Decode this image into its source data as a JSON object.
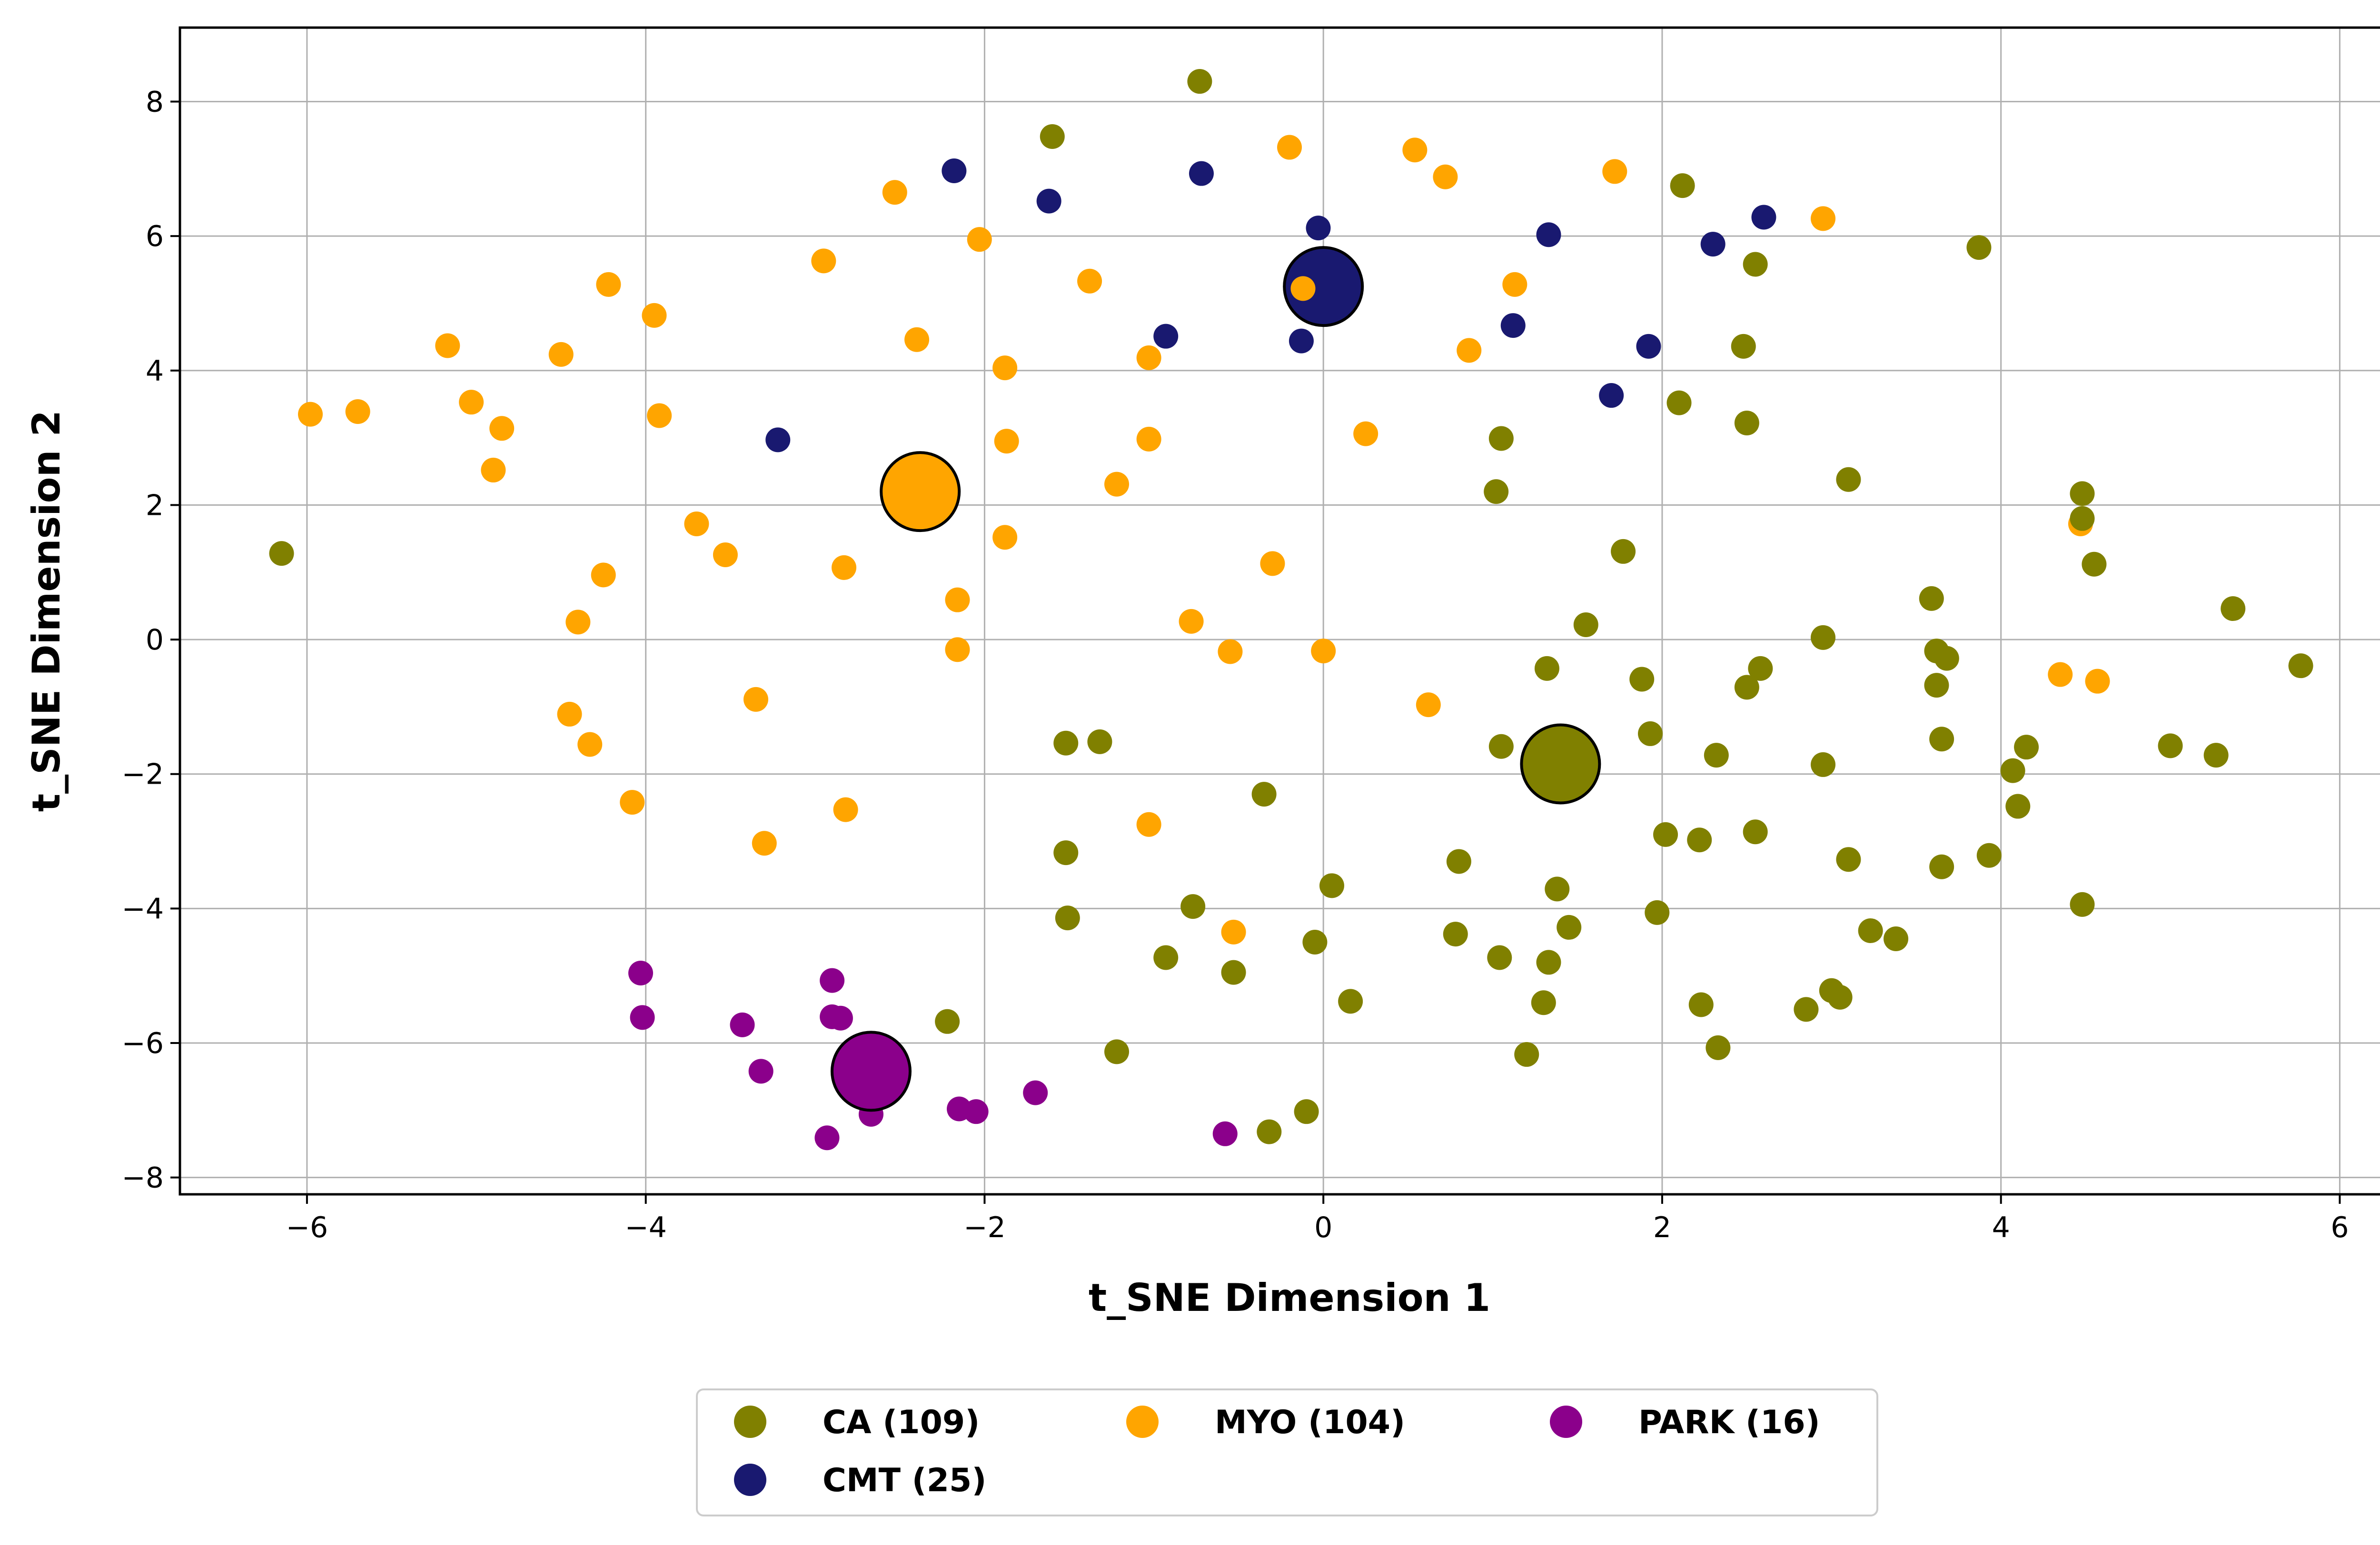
{
  "chart_data": {
    "type": "scatter",
    "title": "",
    "xlabel": "t_SNE Dimension 1",
    "ylabel": "t_SNE Dimension 2",
    "xlim": [
      -6.75,
      6.35
    ],
    "ylim": [
      -8.25,
      9.1
    ],
    "x_ticks": [
      "−6",
      "−4",
      "−2",
      "0",
      "2",
      "4",
      "6"
    ],
    "x_tick_values": [
      -6,
      -4,
      -2,
      0,
      2,
      4,
      6
    ],
    "y_ticks": [
      "−8",
      "−6",
      "−4",
      "−2",
      "0",
      "2",
      "4",
      "6",
      "8"
    ],
    "y_tick_values": [
      -8,
      -6,
      -4,
      -2,
      0,
      2,
      4,
      6,
      8
    ],
    "grid": true,
    "legend_position": "bottom-center",
    "legend": [
      {
        "label": "CA (109)",
        "color": "#808000"
      },
      {
        "label": "MYO (104)",
        "color": "#FFA500"
      },
      {
        "label": "PARK (16)",
        "color": "#8B008B"
      },
      {
        "label": "CMT (25)",
        "color": "#191970"
      }
    ],
    "series": [
      {
        "name": "CA (109)",
        "color": "#808000",
        "centroid": [
          1.4,
          -1.85
        ],
        "points": [
          [
            -6.15,
            1.28
          ],
          [
            -0.73,
            8.3
          ],
          [
            -1.6,
            7.48
          ],
          [
            2.12,
            6.75
          ],
          [
            3.87,
            5.83
          ],
          [
            2.55,
            5.58
          ],
          [
            2.48,
            4.36
          ],
          [
            2.1,
            3.52
          ],
          [
            2.5,
            3.22
          ],
          [
            1.05,
            2.99
          ],
          [
            1.02,
            2.2
          ],
          [
            3.1,
            2.38
          ],
          [
            4.48,
            2.17
          ],
          [
            4.48,
            1.8
          ],
          [
            4.55,
            1.12
          ],
          [
            1.77,
            1.31
          ],
          [
            1.55,
            0.22
          ],
          [
            3.59,
            0.61
          ],
          [
            3.62,
            -0.17
          ],
          [
            3.68,
            -0.28
          ],
          [
            3.62,
            -0.68
          ],
          [
            5.37,
            0.46
          ],
          [
            5.77,
            -0.39
          ],
          [
            2.95,
            0.03
          ],
          [
            1.32,
            -0.43
          ],
          [
            1.88,
            -0.59
          ],
          [
            2.5,
            -0.71
          ],
          [
            2.58,
            -0.43
          ],
          [
            1.93,
            -1.4
          ],
          [
            2.32,
            -1.72
          ],
          [
            1.05,
            -1.59
          ],
          [
            2.95,
            -1.86
          ],
          [
            3.65,
            -1.48
          ],
          [
            4.15,
            -1.6
          ],
          [
            4.07,
            -1.95
          ],
          [
            4.1,
            -2.48
          ],
          [
            5.0,
            -1.58
          ],
          [
            5.27,
            -1.72
          ],
          [
            -1.52,
            -1.54
          ],
          [
            -1.32,
            -1.52
          ],
          [
            -0.35,
            -2.3
          ],
          [
            2.02,
            -2.9
          ],
          [
            2.22,
            -2.98
          ],
          [
            2.55,
            -2.86
          ],
          [
            -1.52,
            -3.17
          ],
          [
            3.1,
            -3.27
          ],
          [
            3.93,
            -3.21
          ],
          [
            3.65,
            -3.38
          ],
          [
            0.8,
            -3.3
          ],
          [
            0.05,
            -3.66
          ],
          [
            1.38,
            -3.71
          ],
          [
            -0.77,
            -3.97
          ],
          [
            1.97,
            -4.06
          ],
          [
            1.45,
            -4.28
          ],
          [
            -1.51,
            -4.14
          ],
          [
            0.78,
            -4.38
          ],
          [
            3.23,
            -4.33
          ],
          [
            3.38,
            -4.45
          ],
          [
            -0.05,
            -4.5
          ],
          [
            4.48,
            -3.94
          ],
          [
            -0.93,
            -4.73
          ],
          [
            -0.53,
            -4.95
          ],
          [
            1.04,
            -4.73
          ],
          [
            1.33,
            -4.8
          ],
          [
            -2.22,
            -5.68
          ],
          [
            0.16,
            -5.38
          ],
          [
            1.3,
            -5.4
          ],
          [
            3.0,
            -5.22
          ],
          [
            3.05,
            -5.32
          ],
          [
            2.23,
            -5.43
          ],
          [
            2.85,
            -5.5
          ],
          [
            -1.22,
            -6.13
          ],
          [
            1.2,
            -6.17
          ],
          [
            2.33,
            -6.07
          ],
          [
            -0.1,
            -7.02
          ],
          [
            -0.32,
            -7.32
          ]
        ]
      },
      {
        "name": "MYO (104)",
        "color": "#FFA500",
        "centroid": [
          -2.38,
          2.2
        ],
        "points": [
          [
            -0.2,
            7.32
          ],
          [
            0.54,
            7.28
          ],
          [
            0.72,
            6.88
          ],
          [
            1.72,
            6.96
          ],
          [
            2.95,
            6.26
          ],
          [
            -2.53,
            6.65
          ],
          [
            -2.03,
            5.95
          ],
          [
            -2.95,
            5.63
          ],
          [
            -1.38,
            5.33
          ],
          [
            1.13,
            5.28
          ],
          [
            -0.12,
            5.22
          ],
          [
            -4.22,
            5.28
          ],
          [
            -3.95,
            4.82
          ],
          [
            -5.17,
            4.37
          ],
          [
            -4.5,
            4.24
          ],
          [
            -2.4,
            4.46
          ],
          [
            -1.88,
            4.04
          ],
          [
            -1.03,
            4.19
          ],
          [
            0.86,
            4.3
          ],
          [
            -5.98,
            3.35
          ],
          [
            -5.7,
            3.39
          ],
          [
            -5.03,
            3.53
          ],
          [
            -4.85,
            3.14
          ],
          [
            -4.9,
            2.52
          ],
          [
            -3.92,
            3.33
          ],
          [
            -1.87,
            2.95
          ],
          [
            -1.03,
            2.98
          ],
          [
            0.25,
            3.06
          ],
          [
            -1.22,
            2.31
          ],
          [
            -3.7,
            1.72
          ],
          [
            -3.53,
            1.26
          ],
          [
            -1.88,
            1.52
          ],
          [
            -2.83,
            1.07
          ],
          [
            -0.3,
            1.13
          ],
          [
            -4.25,
            0.96
          ],
          [
            -4.4,
            0.26
          ],
          [
            -2.16,
            0.59
          ],
          [
            -2.16,
            -0.15
          ],
          [
            -0.78,
            0.27
          ],
          [
            -0.55,
            -0.18
          ],
          [
            0.0,
            -0.17
          ],
          [
            -4.45,
            -1.11
          ],
          [
            -4.33,
            -1.56
          ],
          [
            -3.35,
            -0.89
          ],
          [
            0.62,
            -0.97
          ],
          [
            4.35,
            -0.52
          ],
          [
            4.47,
            1.72
          ],
          [
            4.57,
            -0.62
          ],
          [
            -4.08,
            -2.42
          ],
          [
            -3.3,
            -3.03
          ],
          [
            -2.82,
            -2.53
          ],
          [
            -1.03,
            -2.75
          ],
          [
            -0.53,
            -4.35
          ]
        ]
      },
      {
        "name": "CMT (25)",
        "color": "#191970",
        "centroid": [
          0.0,
          5.25
        ],
        "points": [
          [
            -2.18,
            6.97
          ],
          [
            -1.62,
            6.52
          ],
          [
            -0.72,
            6.93
          ],
          [
            -0.03,
            6.12
          ],
          [
            1.33,
            6.02
          ],
          [
            2.3,
            5.88
          ],
          [
            2.6,
            6.28
          ],
          [
            -0.93,
            4.51
          ],
          [
            -0.13,
            4.44
          ],
          [
            1.12,
            4.67
          ],
          [
            1.92,
            4.36
          ],
          [
            1.7,
            3.63
          ],
          [
            -3.22,
            2.97
          ]
        ]
      },
      {
        "name": "PARK (16)",
        "color": "#8B008B",
        "centroid": [
          -2.67,
          -6.42
        ],
        "points": [
          [
            -4.03,
            -4.96
          ],
          [
            -4.02,
            -5.62
          ],
          [
            -3.43,
            -5.73
          ],
          [
            -2.9,
            -5.07
          ],
          [
            -2.9,
            -5.61
          ],
          [
            -2.85,
            -5.63
          ],
          [
            -3.32,
            -6.42
          ],
          [
            -2.67,
            -7.06
          ],
          [
            -2.15,
            -6.98
          ],
          [
            -2.05,
            -7.02
          ],
          [
            -1.7,
            -6.74
          ],
          [
            -2.93,
            -7.41
          ],
          [
            -0.58,
            -7.35
          ]
        ]
      }
    ]
  }
}
